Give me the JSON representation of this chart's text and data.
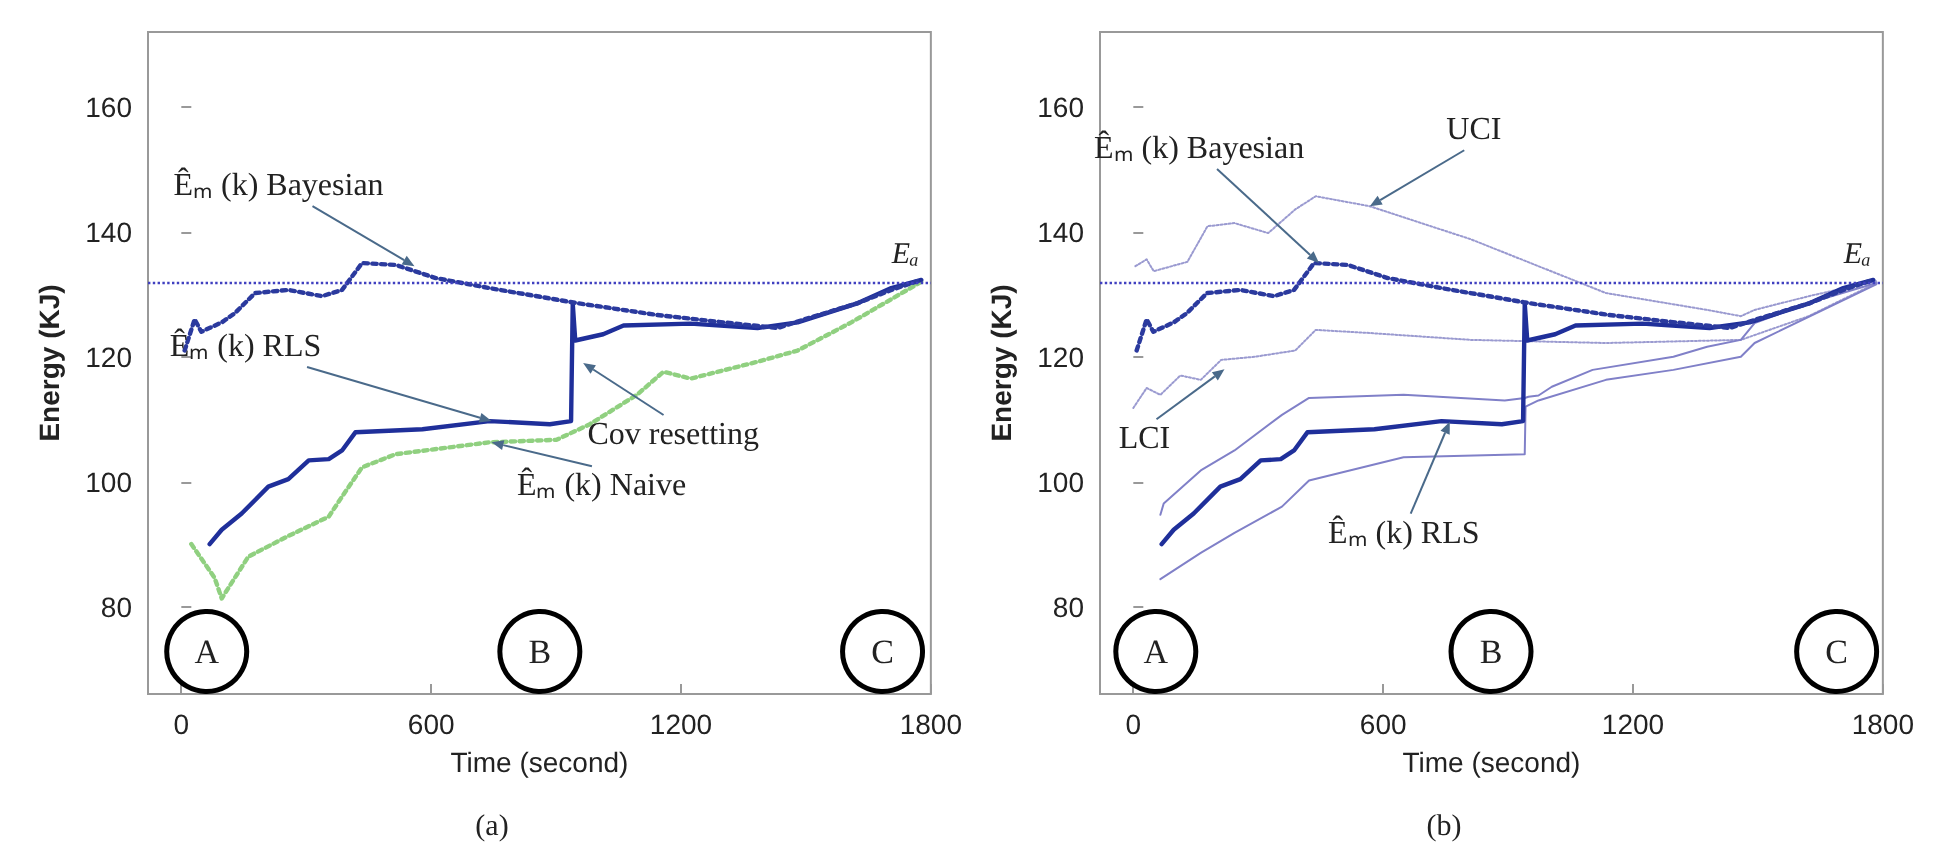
{
  "chart_data": [
    {
      "type": "line",
      "xlabel": "Time (second)",
      "ylabel": "Energy (KJ)",
      "xlim": [
        -80,
        1800
      ],
      "ylim": [
        66,
        172
      ],
      "xticks": [
        0,
        600,
        1200,
        1800
      ],
      "yticks": [
        80,
        100,
        120,
        140,
        160
      ],
      "grid": false,
      "marker": "none",
      "series": [
        {
          "color": "#2b3a9e",
          "line_style": "dotted",
          "x": [
            8,
            32,
            48,
            97,
            129,
            177,
            257,
            338,
            386,
            434,
            515,
            611,
            740,
            949,
            1142,
            1303,
            1432,
            1497,
            1625,
            1705,
            1777
          ],
          "values": [
            121,
            126,
            124,
            125.5,
            127,
            130.2,
            130.7,
            129.7,
            130.7,
            135,
            134.7,
            132.6,
            131,
            128.6,
            126.7,
            125.5,
            124.6,
            126,
            128.6,
            130.7,
            132.3
          ]
        },
        {
          "color": "#1f2f9a",
          "line_style": "solid",
          "x": [
            68,
            97,
            145,
            209,
            257,
            306,
            354,
            386,
            418,
            579,
            740,
            885,
            936,
            940,
            946,
            1013,
            1062,
            1223,
            1384,
            1480,
            1625,
            1705,
            1777
          ],
          "values": [
            90,
            92.3,
            94.9,
            99.2,
            100.4,
            103.4,
            103.6,
            105,
            107.9,
            108.4,
            109.7,
            109.2,
            109.7,
            128.5,
            122.6,
            123.6,
            125,
            125.3,
            124.6,
            125.5,
            128.6,
            131,
            132.3
          ]
        },
        {
          "color": "#90d080",
          "line_style": "dotted",
          "x": [
            24,
            80,
            97,
            161,
            257,
            354,
            386,
            434,
            515,
            740,
            901,
            981,
            1094,
            1158,
            1223,
            1384,
            1480,
            1609,
            1777
          ],
          "values": [
            90,
            84.6,
            81.3,
            88,
            91.3,
            94.4,
            97.6,
            102.3,
            104.4,
            106.3,
            106.7,
            109.2,
            113.9,
            117.6,
            116.5,
            119.2,
            121,
            125.5,
            132
          ]
        }
      ],
      "ref_lines": [
        {
          "axis": "y",
          "value": 132,
          "label": "Eₐ",
          "color": "#4040c0",
          "line_style": "dotted"
        }
      ],
      "annotations": [
        {
          "text": "Êₘ (k) Bayesian",
          "x": 560,
          "y": 134.5
        },
        {
          "text": "Êₘ (k) RLS",
          "x": 745,
          "y": 109.7
        },
        {
          "text": "Cov resetting",
          "x": 965,
          "y": 119
        },
        {
          "text": "Êₘ (k) Naive",
          "x": 745,
          "y": 106.3
        },
        {
          "text": "A",
          "x": 61,
          "y": 72.8
        },
        {
          "text": "B",
          "x": 861,
          "y": 72.8
        },
        {
          "text": "C",
          "x": 1684,
          "y": 72.8
        },
        "(a)"
      ]
    },
    {
      "type": "line",
      "xlabel": "Time (second)",
      "ylabel": "Energy (KJ)",
      "xlim": [
        -80,
        1800
      ],
      "ylim": [
        66,
        172
      ],
      "xticks": [
        0,
        600,
        1200,
        1800
      ],
      "yticks": [
        80,
        100,
        120,
        140,
        160
      ],
      "grid": false,
      "marker": "none",
      "series": [
        {
          "color": "#2b3a9e",
          "line_style": "dotted",
          "x": [
            8,
            32,
            48,
            97,
            129,
            177,
            257,
            338,
            386,
            434,
            515,
            611,
            740,
            949,
            1142,
            1303,
            1432,
            1497,
            1625,
            1705,
            1777
          ],
          "values": [
            121,
            126,
            124,
            125.5,
            127,
            130.2,
            130.7,
            129.7,
            130.7,
            135,
            134.7,
            132.6,
            131,
            128.6,
            126.7,
            125.5,
            124.6,
            126,
            128.6,
            130.7,
            132.3
          ]
        },
        {
          "color": "#1f2f9a",
          "line_style": "solid",
          "x": [
            68,
            97,
            145,
            209,
            257,
            306,
            354,
            386,
            418,
            579,
            740,
            885,
            936,
            940,
            946,
            1013,
            1062,
            1223,
            1384,
            1480,
            1625,
            1705,
            1777
          ],
          "values": [
            90,
            92.3,
            94.9,
            99.2,
            100.4,
            103.4,
            103.6,
            105,
            107.9,
            108.4,
            109.7,
            109.2,
            109.7,
            128.5,
            122.6,
            123.6,
            125,
            125.3,
            124.6,
            125.5,
            128.6,
            131,
            132.3
          ]
        },
        {
          "color": "#9a9ad0",
          "line_style": "dotted",
          "x": [
            5,
            32,
            49,
            130,
            178,
            243,
            324,
            389,
            438,
            568,
            811,
            1135,
            1378,
            1459,
            1492,
            1622,
            1784
          ],
          "values": [
            134.5,
            135.6,
            133.7,
            135.2,
            140.9,
            141.4,
            139.8,
            143.6,
            145.7,
            144.1,
            138.8,
            130.2,
            127.5,
            126.5,
            127.5,
            129.7,
            132.1
          ]
        },
        {
          "color": "#9a9ad0",
          "line_style": "dotted",
          "x": [
            0,
            32,
            65,
            113,
            162,
            211,
            292,
            389,
            438,
            568,
            811,
            1135,
            1459,
            1622,
            1784
          ],
          "values": [
            111.8,
            115,
            113.9,
            117,
            116.3,
            119.5,
            120,
            121,
            124.3,
            123.8,
            122.7,
            122.2,
            122.7,
            126.5,
            131.8
          ]
        },
        {
          "color": "#8080c8",
          "line_style": "solid",
          "x": [
            65,
            73,
            162,
            243,
            357,
            422,
            649,
            892,
            940,
            949,
            973,
            1005,
            1103,
            1297,
            1378,
            1459,
            1492,
            1622,
            1784
          ],
          "values": [
            94.7,
            96.5,
            101.8,
            105,
            110.7,
            113.4,
            113.9,
            113,
            113.4,
            113.6,
            113.8,
            115.2,
            117.9,
            120,
            121.6,
            122.7,
            125.4,
            128.6,
            131.8
          ]
        },
        {
          "color": "#8080c8",
          "line_style": "solid",
          "x": [
            65,
            162,
            243,
            357,
            422,
            649,
            940,
            942,
            973,
            1135,
            1297,
            1459,
            1492,
            1784
          ],
          "values": [
            84.4,
            88.6,
            91.8,
            96,
            100.2,
            103.9,
            104.4,
            112,
            113,
            116.3,
            117.9,
            120,
            122.2,
            131.6
          ]
        }
      ],
      "ref_lines": [
        {
          "axis": "y",
          "value": 132,
          "label": "Eₐ",
          "color": "#4040c0",
          "line_style": "dotted"
        }
      ],
      "annotations": [
        {
          "text": "Êₘ (k) Bayesian",
          "x": 446,
          "y": 135
        },
        {
          "text": "UCI",
          "x": 568,
          "y": 144.1
        },
        {
          "text": "LCI",
          "x": 219,
          "y": 118
        },
        {
          "text": "Êₘ (k) RLS",
          "x": 760,
          "y": 109.6
        },
        {
          "text": "A",
          "x": 54,
          "y": 72.8
        },
        {
          "text": "B",
          "x": 859,
          "y": 72.8
        },
        {
          "text": "C",
          "x": 1689,
          "y": 72.8
        },
        "(b)"
      ]
    }
  ]
}
